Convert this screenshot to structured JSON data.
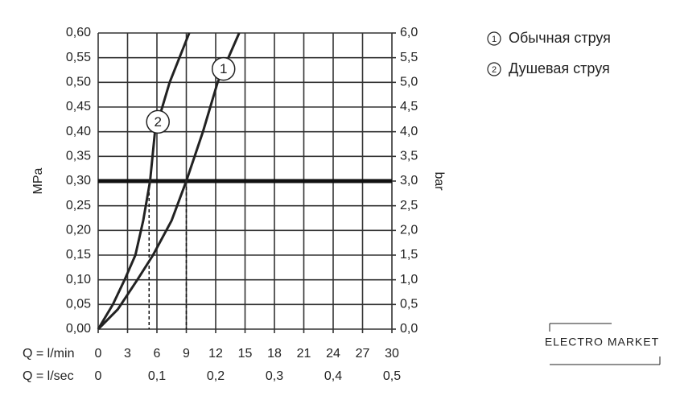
{
  "chart_data": {
    "type": "line",
    "y_label": "MPa",
    "y2_label": "bar",
    "x_label": "Q = l/min",
    "x2_label": "Q = l/sec",
    "xlim": [
      0,
      30
    ],
    "xticks": [
      0,
      3,
      6,
      9,
      12,
      15,
      18,
      21,
      24,
      27,
      30
    ],
    "x2lim": [
      0,
      0.5
    ],
    "x2ticks": [
      0,
      {
        "value": 0.1,
        "label": "0,1"
      },
      {
        "value": 0.2,
        "label": "0,2"
      },
      {
        "value": 0.3,
        "label": "0,3"
      },
      {
        "value": 0.4,
        "label": "0,4"
      },
      {
        "value": 0.5,
        "label": "0,5"
      }
    ],
    "ylim": [
      0,
      0.6
    ],
    "yticks": [
      {
        "value": 0,
        "label": "0,00"
      },
      {
        "value": 0.05,
        "label": "0,05"
      },
      {
        "value": 0.1,
        "label": "0,10"
      },
      {
        "value": 0.15,
        "label": "0,15"
      },
      {
        "value": 0.2,
        "label": "0,20"
      },
      {
        "value": 0.25,
        "label": "0,25"
      },
      {
        "value": 0.3,
        "label": "0,30"
      },
      {
        "value": 0.35,
        "label": "0,35"
      },
      {
        "value": 0.4,
        "label": "0,40"
      },
      {
        "value": 0.45,
        "label": "0,45"
      },
      {
        "value": 0.5,
        "label": "0,50"
      },
      {
        "value": 0.55,
        "label": "0,55"
      },
      {
        "value": 0.6,
        "label": "0,60"
      }
    ],
    "y2lim": [
      0,
      6
    ],
    "y2ticks": [
      {
        "value": 0,
        "label": "0,0"
      },
      {
        "value": 0.5,
        "label": "0,5"
      },
      {
        "value": 1,
        "label": "1,0"
      },
      {
        "value": 1.5,
        "label": "1,5"
      },
      {
        "value": 2,
        "label": "2,0"
      },
      {
        "value": 2.5,
        "label": "2,5"
      },
      {
        "value": 3,
        "label": "3,0"
      },
      {
        "value": 3.5,
        "label": "3,5"
      },
      {
        "value": 4,
        "label": "4,0"
      },
      {
        "value": 4.5,
        "label": "4,5"
      },
      {
        "value": 5,
        "label": "5,0"
      },
      {
        "value": 5.5,
        "label": "5,5"
      },
      {
        "value": 6,
        "label": "6,0"
      }
    ],
    "grid": true,
    "reference_line": 0.3,
    "drop_lines": [
      5.2,
      9.0
    ],
    "series": [
      {
        "name": "Обычная струя",
        "marker": "1",
        "color": "#222",
        "x": [
          0,
          2,
          4,
          5.6,
          7.5,
          9,
          10.7,
          12.2,
          14.4
        ],
        "values": [
          0,
          0.04,
          0.1,
          0.15,
          0.22,
          0.3,
          0.4,
          0.5,
          0.6
        ],
        "marker_at": 12.8
      },
      {
        "name": "Душевая струя",
        "marker": "2",
        "color": "#222",
        "x": [
          0,
          1.5,
          2.7,
          3.8,
          4.6,
          5.3,
          5.8,
          7.3,
          9.3
        ],
        "values": [
          0,
          0.05,
          0.1,
          0.15,
          0.22,
          0.3,
          0.4,
          0.5,
          0.6
        ],
        "marker_at": 6.1
      }
    ],
    "watermark": "ELECTRO MARKET"
  }
}
